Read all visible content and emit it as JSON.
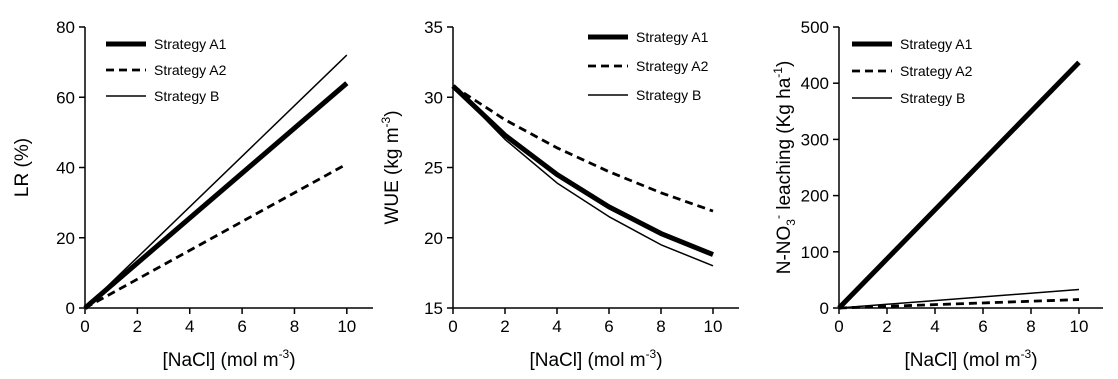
{
  "chart_data": [
    {
      "type": "line",
      "ylabel": "LR (%)",
      "xlabel": "[NaCl]  (mol m",
      "xlabel_unit_sup": "-3",
      "xlabel_tail": ")",
      "xlim": [
        0,
        11
      ],
      "ylim": [
        0,
        80
      ],
      "xticks": [
        0,
        2,
        4,
        6,
        8,
        10
      ],
      "yticks": [
        0,
        20,
        40,
        60,
        80
      ],
      "legend_position": "top-left",
      "x": [
        0,
        10
      ],
      "series": [
        {
          "name": "Strategy A1",
          "style": "thick",
          "values": [
            0,
            64
          ]
        },
        {
          "name": "Strategy A2",
          "style": "dashed",
          "values": [
            0,
            41
          ]
        },
        {
          "name": "Strategy B",
          "style": "thin",
          "values": [
            0,
            72
          ]
        }
      ]
    },
    {
      "type": "line",
      "ylabel": "WUE  (kg m",
      "ylabel_sup": "-3",
      "ylabel_tail": ")",
      "xlabel": "[NaCl] (mol m",
      "xlabel_unit_sup": "-3",
      "xlabel_tail": ")",
      "xlim": [
        0,
        11
      ],
      "ylim": [
        15,
        35
      ],
      "xticks": [
        0,
        2,
        4,
        6,
        8,
        10
      ],
      "yticks": [
        15,
        20,
        25,
        30,
        35
      ],
      "legend_position": "top-right",
      "x": [
        0,
        2,
        4,
        6,
        8,
        10
      ],
      "series": [
        {
          "name": "Strategy A1",
          "style": "thick",
          "values": [
            30.8,
            27.3,
            24.5,
            22.2,
            20.3,
            18.8
          ]
        },
        {
          "name": "Strategy A2",
          "style": "dashed",
          "values": [
            30.8,
            28.4,
            26.4,
            24.7,
            23.2,
            21.9
          ]
        },
        {
          "name": "Strategy B",
          "style": "thin",
          "values": [
            30.8,
            27.0,
            23.9,
            21.5,
            19.5,
            18.0
          ]
        }
      ]
    },
    {
      "type": "line",
      "ylabel": "N-NO",
      "ylabel_sub": "3",
      "ylabel_sup1": "-",
      "ylabel_mid": " leaching (Kg ha",
      "ylabel_sup2": "-1",
      "ylabel_tail": ")",
      "xlabel": "[NaCl]  (mol m",
      "xlabel_unit_sup": "-3",
      "xlabel_tail": ")",
      "xlim": [
        0,
        11
      ],
      "ylim": [
        0,
        500
      ],
      "xticks": [
        0,
        2,
        4,
        6,
        8,
        10
      ],
      "yticks": [
        0,
        100,
        200,
        300,
        400,
        500
      ],
      "legend_position": "top-left",
      "x": [
        0,
        10
      ],
      "series": [
        {
          "name": "Strategy A1",
          "style": "thick",
          "values": [
            0,
            437
          ]
        },
        {
          "name": "Strategy A2",
          "style": "dashed",
          "values": [
            0,
            15
          ]
        },
        {
          "name": "Strategy B",
          "style": "thin",
          "values": [
            0,
            33
          ]
        }
      ]
    }
  ]
}
